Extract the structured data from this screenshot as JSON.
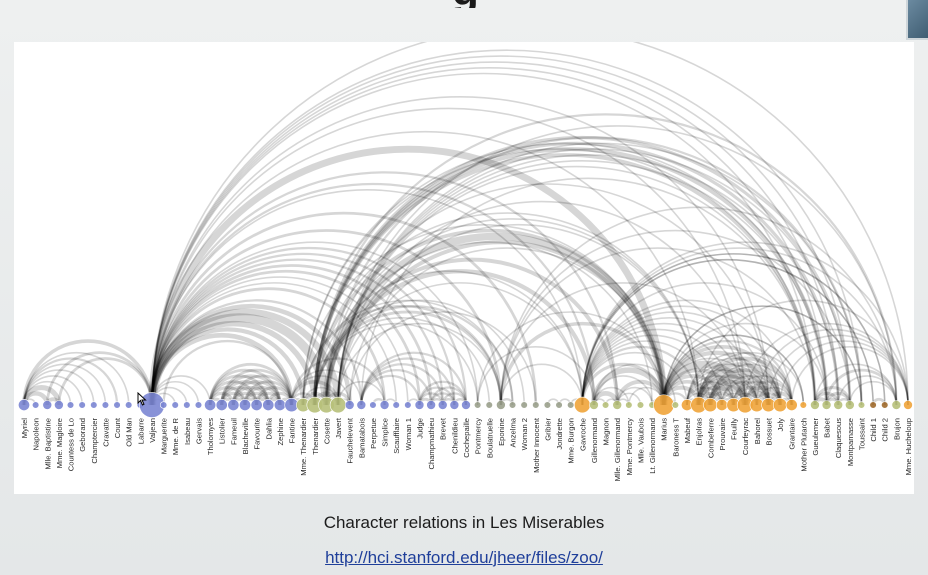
{
  "slide": {
    "title_fragment": "g",
    "caption": "Character relations in Les Miserables",
    "link": "http://hci.stanford.edu/jheer/files/zoo/"
  },
  "colors": {
    "group_blue": "#7b86d3",
    "group_blue_dark": "#5a6ab8",
    "group_olive": "#b7c07a",
    "group_gray": "#9aa08c",
    "group_orange": "#f0a43a",
    "group_brown": "#a06a2c",
    "arc": "#000000",
    "background": "#ffffff"
  },
  "icons": {
    "cursor": "mouse-pointer-icon",
    "video": "video-thumbnail"
  },
  "nodes": [
    {
      "label": "Myriel",
      "size": 3,
      "group": "blue"
    },
    {
      "label": "Napoleon",
      "size": 1,
      "group": "blue"
    },
    {
      "label": "Mlle. Baptistine",
      "size": 2,
      "group": "blue"
    },
    {
      "label": "Mme. Magloire",
      "size": 2,
      "group": "blue"
    },
    {
      "label": "Countess de Lo",
      "size": 1,
      "group": "blue"
    },
    {
      "label": "Geborand",
      "size": 1,
      "group": "blue"
    },
    {
      "label": "Champtercier",
      "size": 1,
      "group": "blue"
    },
    {
      "label": "Cravatte",
      "size": 1,
      "group": "blue"
    },
    {
      "label": "Count",
      "size": 1,
      "group": "blue"
    },
    {
      "label": "Old Man",
      "size": 1,
      "group": "blue"
    },
    {
      "label": "Labarre",
      "size": 1,
      "group": "blue"
    },
    {
      "label": "Valjean",
      "size": 9,
      "group": "blue"
    },
    {
      "label": "Marguerite",
      "size": 1,
      "group": "blue"
    },
    {
      "label": "Mme. de R",
      "size": 1,
      "group": "blue"
    },
    {
      "label": "Isabeau",
      "size": 1,
      "group": "blue"
    },
    {
      "label": "Gervais",
      "size": 1,
      "group": "blue"
    },
    {
      "label": "Tholomyes",
      "size": 3,
      "group": "blue"
    },
    {
      "label": "Listolier",
      "size": 3,
      "group": "blue"
    },
    {
      "label": "Fameuil",
      "size": 3,
      "group": "blue"
    },
    {
      "label": "Blacheville",
      "size": 3,
      "group": "blue"
    },
    {
      "label": "Favourite",
      "size": 3,
      "group": "blue"
    },
    {
      "label": "Dahlia",
      "size": 3,
      "group": "blue"
    },
    {
      "label": "Zephine",
      "size": 3,
      "group": "blue"
    },
    {
      "label": "Fantine",
      "size": 4,
      "group": "blue"
    },
    {
      "label": "Mme. Thenardier",
      "size": 4,
      "group": "olive"
    },
    {
      "label": "Thenardier",
      "size": 5,
      "group": "olive"
    },
    {
      "label": "Cosette",
      "size": 5,
      "group": "olive"
    },
    {
      "label": "Javert",
      "size": 5,
      "group": "olive"
    },
    {
      "label": "Fauchelevent",
      "size": 2,
      "group": "blue"
    },
    {
      "label": "Bamatabois",
      "size": 2,
      "group": "blue"
    },
    {
      "label": "Perpetue",
      "size": 1,
      "group": "blue"
    },
    {
      "label": "Simplice",
      "size": 2,
      "group": "blue"
    },
    {
      "label": "Scaufflaire",
      "size": 1,
      "group": "blue"
    },
    {
      "label": "Woman 1",
      "size": 1,
      "group": "blue"
    },
    {
      "label": "Judge",
      "size": 2,
      "group": "blue"
    },
    {
      "label": "Champmathieu",
      "size": 2,
      "group": "blue"
    },
    {
      "label": "Brevet",
      "size": 2,
      "group": "blue"
    },
    {
      "label": "Chenildieu",
      "size": 2,
      "group": "blue"
    },
    {
      "label": "Cochepaille",
      "size": 2,
      "group": "blue"
    },
    {
      "label": "Pontmercy",
      "size": 1,
      "group": "gray"
    },
    {
      "label": "Boulatruelle",
      "size": 1,
      "group": "gray"
    },
    {
      "label": "Eponine",
      "size": 2,
      "group": "gray"
    },
    {
      "label": "Anzelma",
      "size": 1,
      "group": "gray"
    },
    {
      "label": "Woman 2",
      "size": 1,
      "group": "gray"
    },
    {
      "label": "Mother Innocent",
      "size": 1,
      "group": "gray"
    },
    {
      "label": "Gribier",
      "size": 1,
      "group": "gray"
    },
    {
      "label": "Jondrette",
      "size": 1,
      "group": "gray"
    },
    {
      "label": "Mme. Burgon",
      "size": 1,
      "group": "gray"
    },
    {
      "label": "Gavroche",
      "size": 5,
      "group": "orange"
    },
    {
      "label": "Gillenormand",
      "size": 2,
      "group": "olive"
    },
    {
      "label": "Magnon",
      "size": 1,
      "group": "olive"
    },
    {
      "label": "Mlle. Gillenormand",
      "size": 2,
      "group": "olive"
    },
    {
      "label": "Mme. Pontmercy",
      "size": 1,
      "group": "olive"
    },
    {
      "label": "Mlle. Vaubois",
      "size": 1,
      "group": "olive"
    },
    {
      "label": "Lt. Gillenormand",
      "size": 1,
      "group": "olive"
    },
    {
      "label": "Marius",
      "size": 7,
      "group": "orange"
    },
    {
      "label": "Baroness T",
      "size": 1,
      "group": "olive"
    },
    {
      "label": "Mabeuf",
      "size": 3,
      "group": "orange"
    },
    {
      "label": "Enjolras",
      "size": 5,
      "group": "orange"
    },
    {
      "label": "Combeferre",
      "size": 4,
      "group": "orange"
    },
    {
      "label": "Prouvaire",
      "size": 3,
      "group": "orange"
    },
    {
      "label": "Feuilly",
      "size": 4,
      "group": "orange"
    },
    {
      "label": "Courfeyrac",
      "size": 5,
      "group": "orange"
    },
    {
      "label": "Bahorel",
      "size": 4,
      "group": "orange"
    },
    {
      "label": "Bossuet",
      "size": 4,
      "group": "orange"
    },
    {
      "label": "Joly",
      "size": 4,
      "group": "orange"
    },
    {
      "label": "Grantaire",
      "size": 3,
      "group": "orange"
    },
    {
      "label": "Mother Plutarch",
      "size": 1,
      "group": "orange"
    },
    {
      "label": "Gueulemer",
      "size": 2,
      "group": "olive"
    },
    {
      "label": "Babet",
      "size": 2,
      "group": "olive"
    },
    {
      "label": "Claquesous",
      "size": 2,
      "group": "olive"
    },
    {
      "label": "Montparnasse",
      "size": 2,
      "group": "olive"
    },
    {
      "label": "Toussaint",
      "size": 1,
      "group": "olive"
    },
    {
      "label": "Child 1",
      "size": 1,
      "group": "brown"
    },
    {
      "label": "Child 2",
      "size": 1,
      "group": "brown"
    },
    {
      "label": "Brujon",
      "size": 2,
      "group": "olive"
    },
    {
      "label": "Mme. Hucheloup",
      "size": 2,
      "group": "orange"
    }
  ],
  "links": [
    [
      0,
      1,
      1
    ],
    [
      0,
      2,
      8
    ],
    [
      0,
      3,
      10
    ],
    [
      0,
      4,
      1
    ],
    [
      0,
      5,
      1
    ],
    [
      0,
      6,
      1
    ],
    [
      0,
      7,
      1
    ],
    [
      0,
      8,
      2
    ],
    [
      0,
      9,
      1
    ],
    [
      0,
      11,
      5
    ],
    [
      2,
      3,
      6
    ],
    [
      2,
      11,
      3
    ],
    [
      3,
      11,
      3
    ],
    [
      10,
      11,
      1
    ],
    [
      11,
      12,
      1
    ],
    [
      11,
      13,
      1
    ],
    [
      11,
      14,
      1
    ],
    [
      11,
      15,
      1
    ],
    [
      11,
      23,
      9
    ],
    [
      11,
      24,
      7
    ],
    [
      11,
      25,
      12
    ],
    [
      11,
      26,
      31
    ],
    [
      11,
      27,
      17
    ],
    [
      11,
      28,
      8
    ],
    [
      11,
      29,
      2
    ],
    [
      11,
      31,
      3
    ],
    [
      11,
      32,
      1
    ],
    [
      11,
      33,
      1
    ],
    [
      11,
      34,
      3
    ],
    [
      11,
      35,
      3
    ],
    [
      11,
      36,
      2
    ],
    [
      11,
      37,
      2
    ],
    [
      11,
      38,
      2
    ],
    [
      11,
      41,
      3
    ],
    [
      11,
      44,
      3
    ],
    [
      11,
      48,
      1
    ],
    [
      11,
      49,
      2
    ],
    [
      11,
      51,
      2
    ],
    [
      11,
      55,
      19
    ],
    [
      11,
      58,
      1
    ],
    [
      11,
      62,
      1
    ],
    [
      11,
      64,
      1
    ],
    [
      11,
      68,
      1
    ],
    [
      11,
      69,
      1
    ],
    [
      11,
      70,
      1
    ],
    [
      11,
      71,
      1
    ],
    [
      11,
      72,
      1
    ],
    [
      11,
      76,
      1
    ],
    [
      11,
      16,
      1
    ],
    [
      11,
      39,
      1
    ],
    [
      12,
      23,
      2
    ],
    [
      16,
      17,
      4
    ],
    [
      16,
      18,
      4
    ],
    [
      16,
      19,
      4
    ],
    [
      16,
      20,
      3
    ],
    [
      16,
      21,
      3
    ],
    [
      16,
      22,
      3
    ],
    [
      16,
      23,
      3
    ],
    [
      17,
      18,
      4
    ],
    [
      17,
      19,
      4
    ],
    [
      17,
      20,
      4
    ],
    [
      17,
      21,
      4
    ],
    [
      17,
      22,
      4
    ],
    [
      17,
      23,
      3
    ],
    [
      18,
      19,
      4
    ],
    [
      18,
      20,
      4
    ],
    [
      18,
      21,
      4
    ],
    [
      18,
      22,
      4
    ],
    [
      18,
      23,
      3
    ],
    [
      19,
      20,
      4
    ],
    [
      19,
      21,
      4
    ],
    [
      19,
      22,
      4
    ],
    [
      19,
      23,
      3
    ],
    [
      20,
      21,
      5
    ],
    [
      20,
      22,
      4
    ],
    [
      20,
      23,
      4
    ],
    [
      21,
      22,
      6
    ],
    [
      21,
      23,
      4
    ],
    [
      22,
      23,
      4
    ],
    [
      23,
      24,
      2
    ],
    [
      23,
      25,
      2
    ],
    [
      23,
      27,
      5
    ],
    [
      23,
      29,
      1
    ],
    [
      23,
      31,
      2
    ],
    [
      23,
      28,
      1
    ],
    [
      24,
      25,
      13
    ],
    [
      24,
      26,
      4
    ],
    [
      24,
      27,
      1
    ],
    [
      24,
      41,
      2
    ],
    [
      24,
      42,
      1
    ],
    [
      24,
      55,
      1
    ],
    [
      24,
      68,
      1
    ],
    [
      24,
      69,
      1
    ],
    [
      25,
      26,
      1
    ],
    [
      25,
      27,
      6
    ],
    [
      25,
      39,
      1
    ],
    [
      25,
      40,
      1
    ],
    [
      25,
      41,
      3
    ],
    [
      25,
      42,
      2
    ],
    [
      25,
      48,
      1
    ],
    [
      25,
      55,
      5
    ],
    [
      25,
      58,
      1
    ],
    [
      25,
      68,
      5
    ],
    [
      25,
      69,
      6
    ],
    [
      25,
      70,
      4
    ],
    [
      25,
      71,
      4
    ],
    [
      25,
      75,
      2
    ],
    [
      25,
      43,
      1
    ],
    [
      26,
      27,
      1
    ],
    [
      26,
      28,
      4
    ],
    [
      26,
      49,
      7
    ],
    [
      26,
      51,
      6
    ],
    [
      26,
      55,
      21
    ],
    [
      26,
      54,
      1
    ],
    [
      26,
      72,
      2
    ],
    [
      26,
      64,
      1
    ],
    [
      26,
      58,
      1
    ],
    [
      27,
      28,
      1
    ],
    [
      27,
      31,
      1
    ],
    [
      27,
      41,
      1
    ],
    [
      27,
      48,
      1
    ],
    [
      27,
      55,
      6
    ],
    [
      27,
      58,
      1
    ],
    [
      27,
      62,
      1
    ],
    [
      27,
      68,
      1
    ],
    [
      27,
      69,
      1
    ],
    [
      27,
      70,
      1
    ],
    [
      27,
      71,
      1
    ],
    [
      27,
      72,
      1
    ],
    [
      27,
      75,
      1
    ],
    [
      28,
      44,
      1
    ],
    [
      28,
      55,
      1
    ],
    [
      29,
      34,
      2
    ],
    [
      29,
      35,
      2
    ],
    [
      29,
      36,
      2
    ],
    [
      29,
      37,
      2
    ],
    [
      29,
      38,
      2
    ],
    [
      29,
      68,
      1
    ],
    [
      30,
      31,
      2
    ],
    [
      31,
      32,
      1
    ],
    [
      33,
      34,
      1
    ],
    [
      34,
      35,
      3
    ],
    [
      34,
      36,
      2
    ],
    [
      34,
      37,
      2
    ],
    [
      34,
      38,
      2
    ],
    [
      35,
      36,
      2
    ],
    [
      35,
      37,
      2
    ],
    [
      35,
      38,
      2
    ],
    [
      36,
      37,
      2
    ],
    [
      36,
      38,
      2
    ],
    [
      37,
      38,
      2
    ],
    [
      39,
      55,
      1
    ],
    [
      39,
      49,
      1
    ],
    [
      41,
      42,
      2
    ],
    [
      41,
      55,
      5
    ],
    [
      41,
      48,
      1
    ],
    [
      41,
      62,
      1
    ],
    [
      41,
      68,
      1
    ],
    [
      41,
      71,
      1
    ],
    [
      41,
      75,
      1
    ],
    [
      45,
      46,
      1
    ],
    [
      46,
      47,
      1
    ],
    [
      47,
      48,
      1
    ],
    [
      48,
      55,
      4
    ],
    [
      48,
      57,
      1
    ],
    [
      48,
      58,
      2
    ],
    [
      48,
      59,
      1
    ],
    [
      48,
      60,
      1
    ],
    [
      48,
      61,
      1
    ],
    [
      48,
      62,
      1
    ],
    [
      48,
      63,
      1
    ],
    [
      48,
      64,
      1
    ],
    [
      48,
      65,
      1
    ],
    [
      48,
      66,
      1
    ],
    [
      48,
      69,
      1
    ],
    [
      48,
      73,
      1
    ],
    [
      48,
      74,
      1
    ],
    [
      48,
      75,
      1
    ],
    [
      48,
      76,
      1
    ],
    [
      49,
      50,
      1
    ],
    [
      49,
      51,
      9
    ],
    [
      49,
      55,
      12
    ],
    [
      49,
      52,
      1
    ],
    [
      49,
      54,
      1
    ],
    [
      49,
      56,
      1
    ],
    [
      50,
      51,
      1
    ],
    [
      51,
      52,
      1
    ],
    [
      51,
      53,
      1
    ],
    [
      51,
      54,
      1
    ],
    [
      51,
      55,
      6
    ],
    [
      52,
      55,
      1
    ],
    [
      54,
      55,
      1
    ],
    [
      55,
      56,
      1
    ],
    [
      55,
      57,
      2
    ],
    [
      55,
      58,
      7
    ],
    [
      55,
      59,
      5
    ],
    [
      55,
      60,
      5
    ],
    [
      55,
      61,
      6
    ],
    [
      55,
      62,
      21
    ],
    [
      55,
      63,
      1
    ],
    [
      55,
      64,
      7
    ],
    [
      55,
      65,
      5
    ],
    [
      55,
      66,
      2
    ],
    [
      55,
      67,
      1
    ],
    [
      55,
      69,
      1
    ],
    [
      55,
      72,
      1
    ],
    [
      57,
      58,
      1
    ],
    [
      57,
      59,
      1
    ],
    [
      57,
      60,
      2
    ],
    [
      57,
      61,
      1
    ],
    [
      57,
      62,
      1
    ],
    [
      57,
      63,
      1
    ],
    [
      57,
      64,
      1
    ],
    [
      57,
      65,
      1
    ],
    [
      57,
      66,
      1
    ],
    [
      58,
      59,
      15
    ],
    [
      58,
      60,
      4
    ],
    [
      58,
      61,
      6
    ],
    [
      58,
      62,
      17
    ],
    [
      58,
      63,
      4
    ],
    [
      58,
      64,
      10
    ],
    [
      58,
      65,
      7
    ],
    [
      58,
      66,
      5
    ],
    [
      58,
      67,
      1
    ],
    [
      58,
      76,
      1
    ],
    [
      59,
      60,
      5
    ],
    [
      59,
      61,
      5
    ],
    [
      59,
      62,
      13
    ],
    [
      59,
      63,
      5
    ],
    [
      59,
      64,
      9
    ],
    [
      59,
      65,
      5
    ],
    [
      59,
      66,
      1
    ],
    [
      60,
      61,
      2
    ],
    [
      60,
      62,
      1
    ],
    [
      60,
      64,
      2
    ],
    [
      60,
      65,
      1
    ],
    [
      61,
      62,
      6
    ],
    [
      61,
      63,
      1
    ],
    [
      61,
      64,
      5
    ],
    [
      61,
      65,
      2
    ],
    [
      61,
      66,
      1
    ],
    [
      62,
      63,
      2
    ],
    [
      62,
      64,
      12
    ],
    [
      62,
      65,
      7
    ],
    [
      62,
      66,
      3
    ],
    [
      62,
      76,
      1
    ],
    [
      63,
      64,
      4
    ],
    [
      63,
      65,
      2
    ],
    [
      63,
      66,
      1
    ],
    [
      63,
      76,
      1
    ],
    [
      64,
      65,
      7
    ],
    [
      64,
      66,
      6
    ],
    [
      64,
      76,
      1
    ],
    [
      65,
      66,
      3
    ],
    [
      65,
      76,
      1
    ],
    [
      66,
      76,
      1
    ],
    [
      67,
      55,
      1
    ],
    [
      68,
      69,
      6
    ],
    [
      68,
      70,
      4
    ],
    [
      68,
      71,
      4
    ],
    [
      68,
      75,
      1
    ],
    [
      69,
      70,
      4
    ],
    [
      69,
      71,
      4
    ],
    [
      69,
      75,
      3
    ],
    [
      70,
      71,
      2
    ],
    [
      70,
      75,
      1
    ],
    [
      71,
      75,
      1
    ],
    [
      72,
      55,
      1
    ],
    [
      73,
      74,
      3
    ],
    [
      73,
      48,
      1
    ],
    [
      74,
      48,
      1
    ]
  ]
}
